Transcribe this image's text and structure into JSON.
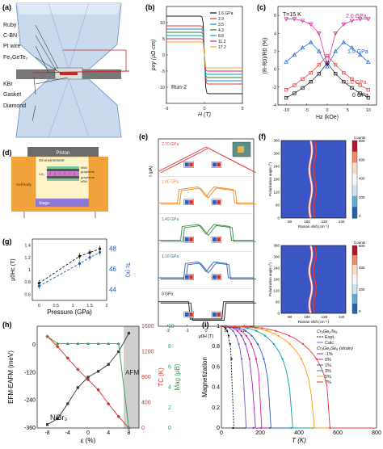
{
  "panels": {
    "a": {
      "label": "(a)",
      "layers": [
        "Ruby",
        "C-BN",
        "Pt wire",
        "Fe₃GeTe₂",
        "KBr",
        "Gasket",
        "Diamond"
      ]
    },
    "b": {
      "label": "(b)",
      "run": "Run-2",
      "legend": [
        "1.6 GPa",
        "2.9",
        "3.5",
        "4.3",
        "8.8",
        "11.2",
        "17.2"
      ]
    },
    "c": {
      "label": "(c)",
      "temperature": "T=15 K",
      "series_labels": [
        "2.0 GPa",
        "1.5 GPa",
        "1.0 GPa",
        "0 GPa"
      ]
    },
    "d": {
      "label": "(d)",
      "texts": [
        "Piston",
        "Cell body",
        "Oil environment",
        "hBN",
        "graphene",
        "CrI₃",
        "graphene",
        "hBN",
        "Stage"
      ]
    },
    "e": {
      "label": "(e)",
      "pressures": [
        "2.70 GPa",
        "1.80 GPa",
        "1.49 GPa",
        "1.16 GPa",
        "0 GPa"
      ]
    },
    "f": {
      "label": "(f)",
      "colorbar_title": "Counts",
      "colorbar_ticks_top": [
        "800",
        "600",
        "400",
        "200",
        "0"
      ],
      "colorbar_ticks_bottom": [
        "600",
        "400",
        "200",
        "0"
      ],
      "y_ticks": [
        "0",
        "60",
        "120",
        "180",
        "240",
        "300",
        "360"
      ],
      "x_ticks": [
        "80",
        "100",
        "120",
        "140"
      ]
    },
    "g": {
      "label": "(g)"
    },
    "h": {
      "label": "(h)",
      "afm_label": "AFM",
      "material": "NiBr₃"
    },
    "i": {
      "label": "(i)",
      "legend_title": "Cr₂Ge₂Te₆",
      "legend": [
        "Expt.",
        "Calc",
        "Cr₂Ge₂Se₆ (strain)",
        "-1%",
        "0%",
        "1%",
        "3%",
        "5%",
        "7%"
      ]
    }
  },
  "colors": {
    "b_series": [
      "#111111",
      "#e53935",
      "#1e88e5",
      "#2e7d32",
      "#00acc1",
      "#e91e63",
      "#f9a825"
    ],
    "c_series": [
      "#d81b9a",
      "#1e5fd8",
      "#e53935",
      "#111111"
    ],
    "e_series": [
      "#e53935",
      "#f08a1c",
      "#2e8b3c",
      "#2860c0",
      "#111111"
    ],
    "g_series": [
      "#111111",
      "#1e5aa8"
    ],
    "h_series": [
      "#333333",
      "#d32f2f",
      "#2e9d4e"
    ],
    "i_series": [
      "#111111",
      "#9c27b0",
      "#d81b9a",
      "#2860c0",
      "#00a3a3",
      "#ff9800",
      "#e53935"
    ]
  },
  "chart_data": [
    {
      "panel": "b",
      "type": "line",
      "xlabel": "H (T)",
      "ylabel": "ρxy (μΩ·cm)",
      "xlim": [
        -9,
        9
      ],
      "ylim": [
        -15,
        15
      ],
      "x_ticks": [
        -9,
        0,
        9
      ],
      "y_ticks": [
        -10,
        -5,
        0,
        5,
        10
      ],
      "series": [
        {
          "name": "1.6 GPa",
          "saturation": 12
        },
        {
          "name": "2.9",
          "saturation": 9
        },
        {
          "name": "3.5",
          "saturation": 8
        },
        {
          "name": "4.3",
          "saturation": 7
        },
        {
          "name": "8.8",
          "saturation": 6
        },
        {
          "name": "11.2",
          "saturation": 5
        },
        {
          "name": "17.2",
          "saturation": 4
        }
      ]
    },
    {
      "panel": "c",
      "type": "scatter",
      "xlabel": "Hz (kOe)",
      "ylabel": "(R-R0)/R0 (%)",
      "xlim": [
        -12,
        12
      ],
      "ylim": [
        -4,
        7
      ],
      "x_ticks": [
        -10,
        -5,
        0,
        5,
        10
      ],
      "y_ticks": [
        -4,
        -2,
        0,
        2,
        4,
        6
      ],
      "x": [
        -10,
        -8,
        -6,
        -4,
        -2,
        0,
        2,
        4,
        6,
        8,
        10
      ],
      "series": [
        {
          "name": "2.0 GPa",
          "values": [
            5.6,
            5.6,
            5.4,
            5.0,
            4.0,
            0.5,
            4.0,
            5.0,
            5.4,
            5.6,
            5.6
          ]
        },
        {
          "name": "1.5 GPa",
          "values": [
            0.8,
            1.6,
            2.4,
            3.0,
            2.0,
            0.3,
            2.0,
            3.0,
            2.4,
            1.6,
            0.8
          ]
        },
        {
          "name": "1.0 GPa",
          "values": [
            -2.3,
            -1.8,
            -1.1,
            -0.4,
            0.5,
            1.5,
            0.5,
            -0.4,
            -1.1,
            -1.8,
            -2.3
          ]
        },
        {
          "name": "0 GPa",
          "values": [
            -3.2,
            -2.7,
            -2.1,
            -1.4,
            -0.5,
            0.7,
            -0.5,
            -1.4,
            -2.1,
            -2.7,
            -3.2
          ]
        }
      ]
    },
    {
      "panel": "e",
      "type": "line",
      "xlabel": "μ0H (T)",
      "ylabel": "I (pA)",
      "xlim": [
        -2.5,
        2.5
      ],
      "x_ticks": [
        -2,
        -1,
        0,
        1,
        2
      ],
      "series": [
        {
          "name": "2.70 GPa"
        },
        {
          "name": "1.80 GPa"
        },
        {
          "name": "1.49 GPa"
        },
        {
          "name": "1.16 GPa"
        },
        {
          "name": "0 GPa"
        }
      ]
    },
    {
      "panel": "f",
      "type": "heatmap",
      "xlabel": "Raman shift (cm⁻¹)",
      "ylabel": "Polarization angle (°)",
      "xlim": [
        70,
        145
      ],
      "ylim": [
        0,
        360
      ],
      "peak_position": 108
    },
    {
      "panel": "g",
      "type": "line",
      "xlabel": "Pressure (GPa)",
      "ylabel": "μ0Hc (T)",
      "ylabel2": "Tc (K)",
      "xlim": [
        -0.2,
        2.0
      ],
      "ylim": [
        0.5,
        1.5
      ],
      "ylim2": [
        43,
        49
      ],
      "x_ticks": [
        0,
        0.5,
        1,
        1.5,
        2
      ],
      "y_ticks": [
        0.6,
        0.8,
        1.0,
        1.2,
        1.4
      ],
      "y2_ticks": [
        44,
        46,
        48
      ],
      "series": [
        {
          "name": "μ0Hc",
          "x": [
            0,
            1.2,
            1.5,
            1.8
          ],
          "values": [
            0.78,
            1.22,
            1.28,
            1.34
          ]
        },
        {
          "name": "Tc",
          "x": [
            0,
            1.2,
            1.5,
            1.8
          ],
          "values": [
            44.4,
            46.6,
            47.2,
            47.7
          ]
        }
      ]
    },
    {
      "panel": "h",
      "type": "line",
      "xlabel": "ε (%)",
      "ylabel": "EFM-EAFM (meV)",
      "ylabel2": "TC (K)",
      "ylabel3": "Mag (μB)",
      "xlim": [
        -10,
        10
      ],
      "ylim": [
        -360,
        80
      ],
      "ylim2": [
        0,
        1600
      ],
      "ylim3": [
        0,
        10
      ],
      "x_ticks": [
        -8,
        -4,
        0,
        4,
        8
      ],
      "y_ticks": [
        -360,
        -240,
        -120,
        0
      ],
      "y2_ticks": [
        0,
        400,
        800,
        1200,
        1600
      ],
      "y3_ticks": [
        0,
        2,
        4,
        6,
        8,
        10
      ],
      "afm_region": [
        7,
        10
      ],
      "x": [
        -8,
        -6,
        -4,
        -2,
        0,
        2,
        4,
        6,
        8
      ],
      "series": [
        {
          "name": "EFM-EAFM",
          "values": [
            -345,
            -320,
            -255,
            -185,
            -140,
            -115,
            -85,
            -30,
            50
          ]
        },
        {
          "name": "TC",
          "values": [
            1440,
            1280,
            1100,
            920,
            760,
            600,
            380,
            180,
            0
          ]
        },
        {
          "name": "Mag",
          "values": [
            9.0,
            8.3,
            8.3,
            8.3,
            8.3,
            8.3,
            8.3,
            8.3,
            0.0
          ]
        }
      ]
    },
    {
      "panel": "i",
      "type": "line",
      "xlabel": "T (K)",
      "ylabel": "Magnetization",
      "xlim": [
        0,
        800
      ],
      "ylim": [
        0,
        1.0
      ],
      "x_ticks": [
        0,
        200,
        400,
        600,
        800
      ],
      "y_ticks": [
        0,
        0.2,
        0.4,
        0.6,
        0.8,
        1.0
      ],
      "series": [
        {
          "name": "Expt.",
          "tc": 60
        },
        {
          "name": "Calc",
          "tc": 120
        },
        {
          "name": "-1%",
          "tc": 165
        },
        {
          "name": "0%",
          "tc": 205
        },
        {
          "name": "1%",
          "tc": 250
        },
        {
          "name": "3%",
          "tc": 360
        },
        {
          "name": "5%",
          "tc": 470
        },
        {
          "name": "7%",
          "tc": 560
        }
      ]
    }
  ]
}
